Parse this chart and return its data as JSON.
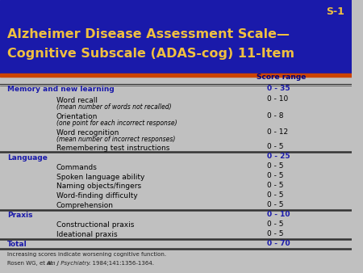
{
  "title_line1": "Alzheimer Disease Assessment Scale—",
  "title_line2": "Cognitive Subscale (ADAS-cog) 11-Item",
  "slide_id": "S-1",
  "bg_color": "#c0c0c0",
  "title_bg_color": "#1a1aaa",
  "title_color": "#f0c040",
  "slide_id_color": "#f0c040",
  "header_text": "Score range",
  "header_color": "#000080",
  "rows": [
    {
      "label": "Memory and new learning",
      "score": "0 - 35",
      "indent": false,
      "bold": true,
      "color": "#1a1aaa",
      "sublabel": null,
      "thick_line_above": true
    },
    {
      "label": "Word recall",
      "score": "0 - 10",
      "indent": true,
      "bold": false,
      "color": "#000000",
      "sublabel": "(mean number of words not recalled)",
      "thick_line_above": false
    },
    {
      "label": "Orientation",
      "score": "0 - 8",
      "indent": true,
      "bold": false,
      "color": "#000000",
      "sublabel": "(one point for each incorrect response)",
      "thick_line_above": false
    },
    {
      "label": "Word recognition",
      "score": "0 - 12",
      "indent": true,
      "bold": false,
      "color": "#000000",
      "sublabel": "(mean number of incorrect responses)",
      "thick_line_above": false
    },
    {
      "label": "Remembering test instructions",
      "score": "0 - 5",
      "indent": true,
      "bold": false,
      "color": "#000000",
      "sublabel": null,
      "thick_line_above": false
    },
    {
      "label": "Language",
      "score": "0 - 25",
      "indent": false,
      "bold": true,
      "color": "#1a1aaa",
      "sublabel": null,
      "thick_line_above": true
    },
    {
      "label": "Commands",
      "score": "0 - 5",
      "indent": true,
      "bold": false,
      "color": "#000000",
      "sublabel": null,
      "thick_line_above": false
    },
    {
      "label": "Spoken language ability",
      "score": "0 - 5",
      "indent": true,
      "bold": false,
      "color": "#000000",
      "sublabel": null,
      "thick_line_above": false
    },
    {
      "label": "Naming objects/fingers",
      "score": "0 - 5",
      "indent": true,
      "bold": false,
      "color": "#000000",
      "sublabel": null,
      "thick_line_above": false
    },
    {
      "label": "Word-finding difficulty",
      "score": "0 - 5",
      "indent": true,
      "bold": false,
      "color": "#000000",
      "sublabel": null,
      "thick_line_above": false
    },
    {
      "label": "Comprehension",
      "score": "0 - 5",
      "indent": true,
      "bold": false,
      "color": "#000000",
      "sublabel": null,
      "thick_line_above": false
    },
    {
      "label": "Praxis",
      "score": "0 - 10",
      "indent": false,
      "bold": true,
      "color": "#1a1aaa",
      "sublabel": null,
      "thick_line_above": true
    },
    {
      "label": "Constructional praxis",
      "score": "0 - 5",
      "indent": true,
      "bold": false,
      "color": "#000000",
      "sublabel": null,
      "thick_line_above": false
    },
    {
      "label": "Ideational praxis",
      "score": "0 - 5",
      "indent": true,
      "bold": false,
      "color": "#000000",
      "sublabel": null,
      "thick_line_above": false
    },
    {
      "label": "Total",
      "score": "0 - 70",
      "indent": false,
      "bold": true,
      "color": "#1a1aaa",
      "sublabel": null,
      "thick_line_above": true
    }
  ],
  "footer_line1": "Increasing scores indicate worsening cognitive function.",
  "footer_line2_pre": "Rosen WG, et al. ",
  "footer_line2_italic": "Am J Psychiatry",
  "footer_line2_post": ". 1984;141:1356-1364."
}
